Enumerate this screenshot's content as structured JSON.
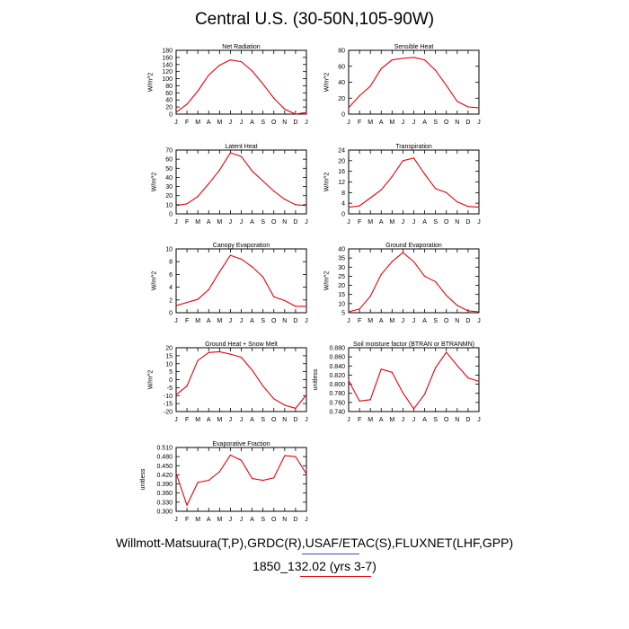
{
  "figure": {
    "title": "Central U.S. (30-50N,105-90W)",
    "caption_line1": "Willmott-Matsuura(T,P),GRDC(R),USAF/ETAC(S),FLUXNET(LHF,GPP)",
    "caption_line2": "1850_132.02 (yrs 3-7)",
    "line_color": "#e8000b",
    "underline_blue": "#3a4fc4",
    "underline_red": "#e8000b"
  },
  "chart_data": [
    {
      "type": "line",
      "title": "Net Radiation",
      "ylabel": "W/m^2",
      "categories": [
        "J",
        "F",
        "M",
        "A",
        "M",
        "J",
        "J",
        "A",
        "S",
        "O",
        "N",
        "D",
        "J"
      ],
      "ylim": [
        0,
        180
      ],
      "ytick_labels": [
        "0",
        "20",
        "40",
        "60",
        "80",
        "100",
        "120",
        "140",
        "160",
        "180"
      ],
      "values": [
        5,
        28,
        65,
        110,
        138,
        153,
        148,
        122,
        85,
        45,
        14,
        0,
        5
      ]
    },
    {
      "type": "line",
      "title": "Sensible Heat",
      "ylabel": "W/m^2",
      "categories": [
        "J",
        "F",
        "M",
        "A",
        "M",
        "J",
        "J",
        "A",
        "S",
        "O",
        "N",
        "D",
        "J"
      ],
      "ylim": [
        0,
        80
      ],
      "ytick_labels": [
        "0",
        "20",
        "40",
        "60",
        "80"
      ],
      "values": [
        8,
        23,
        35,
        57,
        68,
        70,
        71,
        68,
        55,
        36,
        16,
        9,
        8
      ]
    },
    {
      "type": "line",
      "title": "Latent Heat",
      "ylabel": "W/m^2",
      "categories": [
        "J",
        "F",
        "M",
        "A",
        "M",
        "J",
        "J",
        "A",
        "S",
        "O",
        "N",
        "D",
        "J"
      ],
      "ylim": [
        0,
        70
      ],
      "ytick_labels": [
        "0",
        "10",
        "20",
        "30",
        "40",
        "50",
        "60",
        "70"
      ],
      "values": [
        9,
        11,
        19,
        33,
        48,
        67,
        63,
        47,
        36,
        25,
        16,
        10,
        9
      ]
    },
    {
      "type": "line",
      "title": "Transpiration",
      "ylabel": "W/m^2",
      "categories": [
        "J",
        "F",
        "M",
        "A",
        "M",
        "J",
        "J",
        "A",
        "S",
        "O",
        "N",
        "D",
        "J"
      ],
      "ylim": [
        0,
        24
      ],
      "ytick_labels": [
        "0",
        "4",
        "8",
        "12",
        "16",
        "20",
        "24"
      ],
      "values": [
        2.5,
        3,
        6,
        9,
        14,
        20,
        21,
        15,
        9.5,
        8,
        4.5,
        2.8,
        2.5
      ]
    },
    {
      "type": "line",
      "title": "Canopy Evaporation",
      "ylabel": "W/m^2",
      "categories": [
        "J",
        "F",
        "M",
        "A",
        "M",
        "J",
        "J",
        "A",
        "S",
        "O",
        "N",
        "D",
        "J"
      ],
      "ylim": [
        0,
        10
      ],
      "ytick_labels": [
        "0",
        "2",
        "4",
        "6",
        "8",
        "10"
      ],
      "values": [
        1.1,
        1.6,
        2.1,
        3.6,
        6.4,
        9,
        8.4,
        7.2,
        5.6,
        2.5,
        1.9,
        1.0,
        1.0
      ]
    },
    {
      "type": "line",
      "title": "Ground Evaporation",
      "ylabel": "W/m^2",
      "categories": [
        "J",
        "F",
        "M",
        "A",
        "M",
        "J",
        "J",
        "A",
        "S",
        "O",
        "N",
        "D",
        "J"
      ],
      "ylim": [
        5,
        40
      ],
      "ytick_labels": [
        "5",
        "10",
        "15",
        "20",
        "25",
        "30",
        "35",
        "40"
      ],
      "values": [
        5.5,
        7,
        14,
        26,
        33,
        38,
        33,
        25,
        22,
        14.5,
        9,
        6,
        5.5
      ]
    },
    {
      "type": "line",
      "title": "Ground Heat + Snow Melt",
      "ylabel": "W/m^2",
      "categories": [
        "J",
        "F",
        "M",
        "A",
        "M",
        "J",
        "J",
        "A",
        "S",
        "O",
        "N",
        "D",
        "J"
      ],
      "ylim": [
        -20,
        20
      ],
      "ytick_labels": [
        "-20",
        "-15",
        "-10",
        "-5",
        "0",
        "5",
        "10",
        "15",
        "20"
      ],
      "values": [
        -9.5,
        -4,
        12,
        17,
        17.5,
        16,
        14,
        6,
        -4,
        -12,
        -16,
        -18,
        -9.5
      ]
    },
    {
      "type": "line",
      "title": "Soil moisture factor (BTRAN or BTRANMN)",
      "ylabel": "unitless",
      "categories": [
        "J",
        "F",
        "M",
        "A",
        "M",
        "J",
        "J",
        "A",
        "S",
        "O",
        "N",
        "D",
        "J"
      ],
      "ylim": [
        0.74,
        0.88
      ],
      "ytick_labels": [
        "0.740",
        "0.760",
        "0.780",
        "0.800",
        "0.820",
        "0.840",
        "0.860",
        "0.880"
      ],
      "values": [
        0.808,
        0.763,
        0.766,
        0.833,
        0.826,
        0.781,
        0.746,
        0.778,
        0.836,
        0.87,
        0.841,
        0.814,
        0.806
      ]
    },
    {
      "type": "line",
      "title": "Evaporative Fraction",
      "ylabel": "unitless",
      "categories": [
        "J",
        "F",
        "M",
        "A",
        "M",
        "J",
        "J",
        "A",
        "S",
        "O",
        "N",
        "D",
        "J"
      ],
      "ylim": [
        0.3,
        0.51
      ],
      "ytick_labels": [
        "0.300",
        "0.330",
        "0.360",
        "0.390",
        "0.420",
        "0.450",
        "0.480",
        "0.510"
      ],
      "values": [
        0.425,
        0.32,
        0.395,
        0.402,
        0.43,
        0.485,
        0.468,
        0.408,
        0.402,
        0.41,
        0.483,
        0.48,
        0.423
      ]
    }
  ]
}
